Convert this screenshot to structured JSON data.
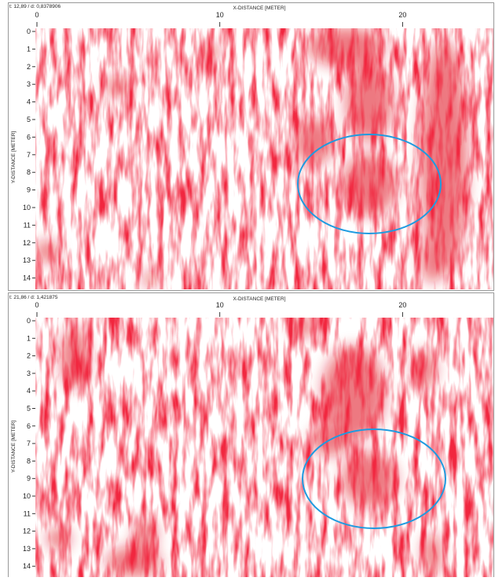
{
  "panels": [
    {
      "header": "t: 12,89 / d: 0,8378906",
      "x_axis_label": "X-DISTANCE [METER]",
      "y_axis_label": "Y-DISTANCE [METER]",
      "x_ticks": [
        0,
        10,
        20
      ],
      "y_ticks": [
        0,
        1,
        2,
        3,
        4,
        5,
        6,
        7,
        8,
        9,
        10,
        11,
        12,
        13,
        14
      ]
    },
    {
      "header": "t: 21,86 / d: 1,421875",
      "x_axis_label": "X-DISTANCE [METER]",
      "y_axis_label": "Y-DISTANCE [METER]",
      "x_ticks": [
        0,
        10,
        20
      ],
      "y_ticks": [
        0,
        1,
        2,
        3,
        4,
        5,
        6,
        7,
        8,
        9,
        10,
        11,
        12,
        13,
        14
      ]
    }
  ]
}
